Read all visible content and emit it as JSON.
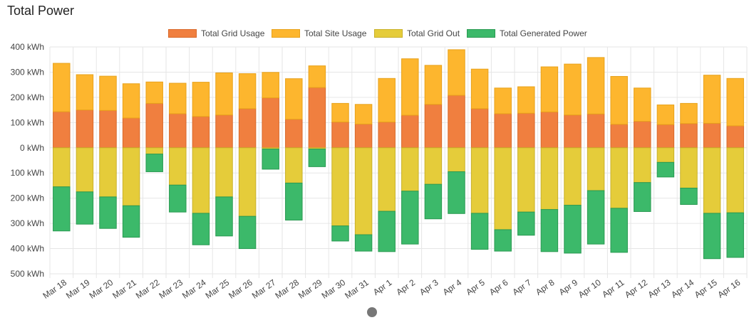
{
  "title": "Total Power",
  "scroll_indicator": "scroll-handle",
  "chart_data": {
    "type": "bar",
    "stacked": true,
    "title": "Total Power",
    "xlabel": "",
    "ylabel": "",
    "unit": "kWh",
    "ylim": [
      -500,
      400
    ],
    "ytick_values": [
      400,
      300,
      200,
      100,
      0,
      -100,
      -200,
      -300,
      -400,
      -500
    ],
    "ytick_labels": [
      "400 kWh",
      "300 kWh",
      "200 kWh",
      "100 kWh",
      "0 kWh",
      "100 kWh",
      "200 kWh",
      "300 kWh",
      "400 kWh",
      "500 kWh"
    ],
    "grid": true,
    "legend_position": "top-center",
    "categories": [
      "Mar 18",
      "Mar 19",
      "Mar 20",
      "Mar 21",
      "Mar 22",
      "Mar 23",
      "Mar 24",
      "Mar 25",
      "Mar 26",
      "Mar 27",
      "Mar 28",
      "Mar 29",
      "Mar 30",
      "Mar 31",
      "Apr 1",
      "Apr 2",
      "Apr 3",
      "Apr 4",
      "Apr 5",
      "Apr 6",
      "Apr 7",
      "Apr 8",
      "Apr 9",
      "Apr 10",
      "Apr 11",
      "Apr 12",
      "Apr 13",
      "Apr 14",
      "Apr 15",
      "Apr 16"
    ],
    "series": [
      {
        "name": "Total Grid Usage",
        "color": "#f07f3f",
        "border": "#d9692a",
        "stack": "positive",
        "values": [
          143,
          150,
          148,
          118,
          176,
          135,
          124,
          130,
          155,
          198,
          113,
          239,
          102,
          94,
          102,
          129,
          172,
          208,
          155,
          135,
          137,
          142,
          130,
          134,
          93,
          105,
          92,
          96,
          97,
          87
        ]
      },
      {
        "name": "Total Site Usage",
        "color": "#fdb62e",
        "border": "#e8a21b",
        "stack": "positive",
        "values": [
          192,
          140,
          136,
          136,
          85,
          121,
          136,
          167,
          139,
          101,
          161,
          86,
          74,
          78,
          173,
          224,
          155,
          181,
          157,
          102,
          105,
          179,
          202,
          224,
          190,
          132,
          78,
          80,
          191,
          188
        ]
      },
      {
        "name": "Total Grid Out",
        "color": "#e5cc3a",
        "border": "#c9b12a",
        "stack": "negative",
        "values": [
          -155,
          -175,
          -195,
          -230,
          -25,
          -148,
          -260,
          -195,
          -272,
          -5,
          -140,
          -5,
          -310,
          -345,
          -252,
          -172,
          -145,
          -95,
          -260,
          -325,
          -255,
          -245,
          -228,
          -170,
          -240,
          -138,
          -58,
          -160,
          -260,
          -258
        ]
      },
      {
        "name": "Total Generated Power",
        "color": "#3cb96a",
        "border": "#2a9a52",
        "stack": "negative",
        "values": [
          -175,
          -128,
          -125,
          -125,
          -70,
          -107,
          -125,
          -155,
          -128,
          -80,
          -147,
          -70,
          -60,
          -65,
          -160,
          -210,
          -137,
          -166,
          -143,
          -85,
          -92,
          -167,
          -190,
          -212,
          -175,
          -115,
          -58,
          -65,
          -180,
          -177
        ]
      }
    ]
  }
}
